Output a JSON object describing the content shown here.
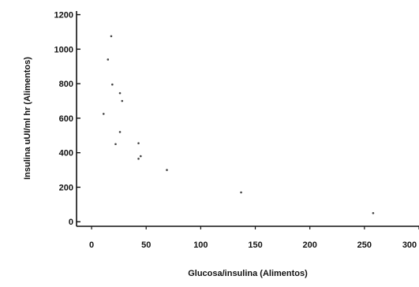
{
  "chart_data": {
    "type": "scatter",
    "title": "",
    "xlabel": "Glucosa/insulina (Alimentos)",
    "ylabel": "Insulina uUI/ml hr (Alimentos)",
    "xlim": [
      -8,
      300
    ],
    "ylim": [
      -40,
      1230
    ],
    "x_ticks": [
      0,
      50,
      100,
      150,
      200,
      250,
      300
    ],
    "y_ticks": [
      0,
      200,
      400,
      600,
      800,
      1000,
      1200
    ],
    "x_tick_labels": [
      "0",
      "50",
      "100",
      "150",
      "200",
      "250",
      "300"
    ],
    "y_tick_labels": [
      "0",
      "200",
      "400",
      "600",
      "800",
      "1000",
      "1200"
    ],
    "grid": false,
    "legend": "none",
    "marker_color": "#444444",
    "series": [
      {
        "x": [
          18,
          15,
          19,
          26,
          28,
          11,
          26,
          22,
          43,
          45,
          43,
          69,
          137,
          258
        ],
        "y": [
          1075,
          940,
          795,
          745,
          700,
          625,
          520,
          450,
          455,
          380,
          365,
          300,
          170,
          50
        ]
      }
    ]
  }
}
